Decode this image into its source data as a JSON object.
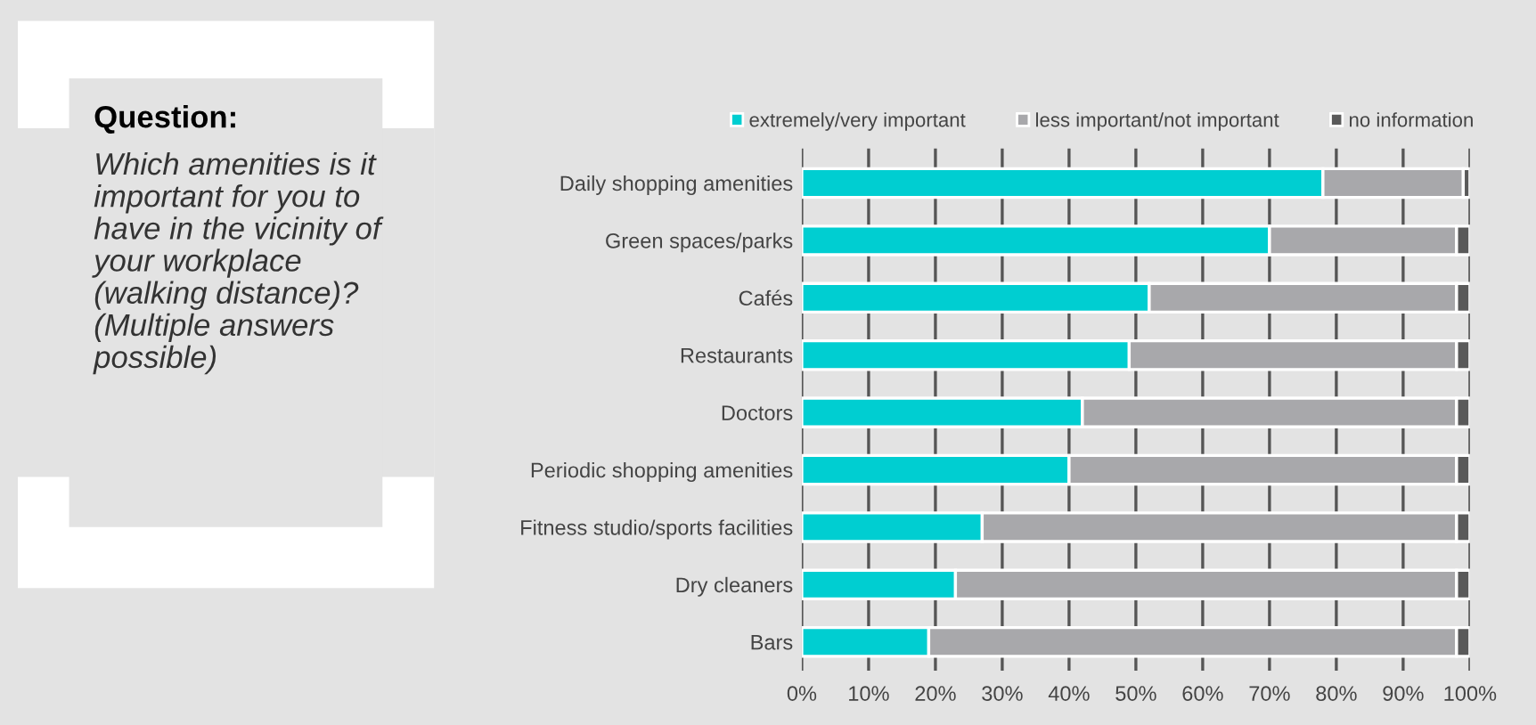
{
  "chart_data": {
    "type": "bar",
    "orientation": "horizontal",
    "stacked": true,
    "categories": [
      "Daily shopping amenities",
      "Green spaces/parks",
      "Cafés",
      "Restaurants",
      "Doctors",
      "Periodic shopping amenities",
      "Fitness studio/sports facilities",
      "Dry cleaners",
      "Bars"
    ],
    "series": [
      {
        "name": "extremely/very important",
        "color": "#00ced1",
        "values": [
          78,
          70,
          52,
          49,
          42,
          40,
          27,
          23,
          19
        ]
      },
      {
        "name": "less important/not important",
        "color": "#a8a8ab",
        "values": [
          21,
          28,
          46,
          49,
          56,
          58,
          71,
          75,
          79
        ]
      },
      {
        "name": "no information",
        "color": "#5a5a5a",
        "values": [
          1,
          2,
          2,
          2,
          2,
          2,
          2,
          2,
          2
        ]
      }
    ],
    "xlim": [
      0,
      100
    ],
    "xticks": [
      {
        "value": 0,
        "label": "0%"
      },
      {
        "value": 10,
        "label": "10%"
      },
      {
        "value": 20,
        "label": "20%"
      },
      {
        "value": 30,
        "label": "30%"
      },
      {
        "value": 40,
        "label": "40%"
      },
      {
        "value": 50,
        "label": "50%"
      },
      {
        "value": 60,
        "label": "60%"
      },
      {
        "value": 70,
        "label": "70%"
      },
      {
        "value": 80,
        "label": "80%"
      },
      {
        "value": 90,
        "label": "90%"
      },
      {
        "value": 100,
        "label": "100%"
      }
    ],
    "grid": "x",
    "legend": "top",
    "annotations": [
      "Question:",
      "Which amenities is it important for you to have in the vicinity of your workplace (walking distance)? (Multiple answers possible)"
    ]
  }
}
